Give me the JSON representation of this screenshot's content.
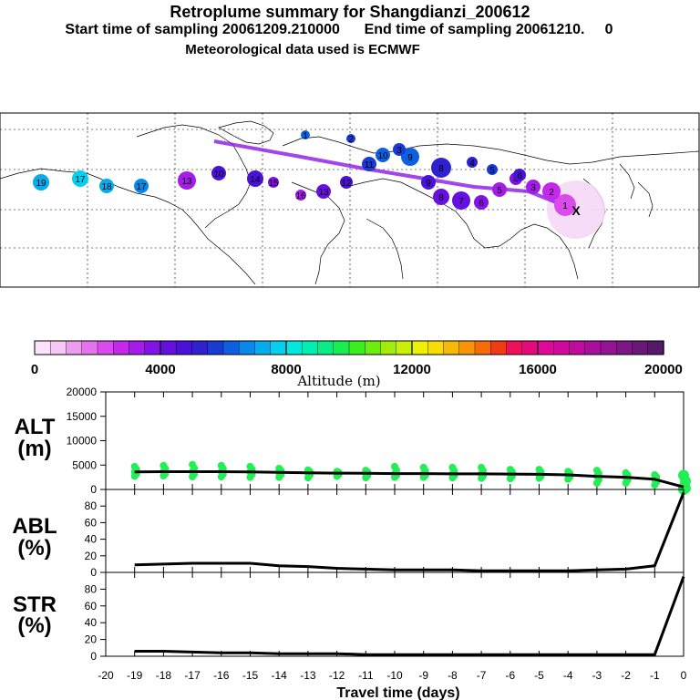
{
  "header": {
    "title": "Retroplume summary for Shangdianzi_200612",
    "sampling_line": "Start time of sampling 20061209.210000      End time of sampling 20061210.     0",
    "met_line": "Meteorological data used is ECMWF"
  },
  "colorbar": {
    "tick_labels": [
      "0",
      "4000",
      "8000",
      "12000",
      "16000",
      "20000"
    ],
    "axis_label": "Altitude (m)",
    "colors": [
      "#fbe3fb",
      "#f5c8f5",
      "#ee9cf0",
      "#e673ee",
      "#d94bea",
      "#c428ea",
      "#a41ce8",
      "#8212e6",
      "#6610e0",
      "#4a12d6",
      "#2f20d0",
      "#1a3ad6",
      "#0f60e0",
      "#0888e8",
      "#06acee",
      "#04cfee",
      "#04e8dc",
      "#04eeb4",
      "#08ee86",
      "#18ee50",
      "#3aee20",
      "#6eee10",
      "#a0ee08",
      "#caf008",
      "#eef008",
      "#f8dc08",
      "#f8b808",
      "#f89408",
      "#f86c08",
      "#f03c10",
      "#f0105a",
      "#e8087e",
      "#e00896",
      "#d00a9c",
      "#c00c9c",
      "#a8109c",
      "#941494",
      "#7e1688",
      "#6a1878",
      "#561868"
    ]
  },
  "map": {
    "label_numbers": [
      "1",
      "2",
      "3",
      "4",
      "5",
      "6",
      "7",
      "8",
      "9",
      "10",
      "11",
      "12",
      "13",
      "14",
      "15",
      "16",
      "17",
      "18",
      "19"
    ],
    "source_marker": "X"
  },
  "chart_data": [
    {
      "type": "line",
      "panel": "altitude",
      "ylabel": "ALT\n(m)",
      "ylabel_lines": [
        "ALT",
        "(m)"
      ],
      "ylim": [
        0,
        20000
      ],
      "y_ticks": [
        "0",
        "5000",
        "10000",
        "15000",
        "20000"
      ],
      "xlim": [
        -20,
        0
      ],
      "x": [
        -19,
        -18,
        -17,
        -16,
        -15,
        -14,
        -13,
        -12,
        -11,
        -10,
        -9,
        -8,
        -7,
        -6,
        -5,
        -4,
        -3,
        -2,
        -1,
        0
      ],
      "series": [
        {
          "name": "mean altitude",
          "values": [
            3600,
            3650,
            3650,
            3650,
            3600,
            3500,
            3400,
            3350,
            3300,
            3250,
            3250,
            3200,
            3200,
            3150,
            3100,
            3000,
            2700,
            2500,
            2100,
            500
          ]
        },
        {
          "name": "upper spread",
          "values": [
            4700,
            4900,
            5100,
            4900,
            4700,
            4300,
            4000,
            3700,
            3900,
            4700,
            4500,
            4500,
            4500,
            4100,
            4100,
            3700,
            3900,
            3400,
            3000,
            2900
          ]
        },
        {
          "name": "lower spread",
          "values": [
            2700,
            2800,
            2600,
            2600,
            2500,
            2500,
            2400,
            2700,
            2400,
            2500,
            2500,
            2400,
            2300,
            2200,
            2300,
            2100,
            1300,
            1300,
            900,
            0
          ]
        }
      ]
    },
    {
      "type": "line",
      "panel": "abl",
      "ylabel": "ABL\n(%)",
      "ylabel_lines": [
        "ABL",
        "(%)"
      ],
      "ylim": [
        0,
        100
      ],
      "y_ticks": [
        "0",
        "20",
        "40",
        "60",
        "80"
      ],
      "xlim": [
        -20,
        0
      ],
      "x": [
        -19,
        -18,
        -17,
        -16,
        -15,
        -14,
        -13,
        -12,
        -11,
        -10,
        -9,
        -8,
        -7,
        -6,
        -5,
        -4,
        -3,
        -2,
        -1,
        0
      ],
      "series": [
        {
          "name": "fraction in ABL",
          "values": [
            9,
            10,
            11,
            11,
            11,
            8,
            7,
            5,
            4,
            3,
            3,
            3,
            2,
            2,
            2,
            2,
            3,
            4,
            8,
            96
          ]
        }
      ]
    },
    {
      "type": "line",
      "panel": "str",
      "ylabel": "STR\n(%)",
      "ylabel_lines": [
        "STR",
        "(%)"
      ],
      "ylim": [
        0,
        100
      ],
      "y_ticks": [
        "0",
        "20",
        "40",
        "60",
        "80"
      ],
      "xlim": [
        -20,
        0
      ],
      "x": [
        -19,
        -18,
        -17,
        -16,
        -15,
        -14,
        -13,
        -12,
        -11,
        -10,
        -9,
        -8,
        -7,
        -6,
        -5,
        -4,
        -3,
        -2,
        -1,
        0
      ],
      "series": [
        {
          "name": "fraction in stratosphere",
          "values": [
            6,
            6,
            5,
            4,
            4,
            3,
            3,
            3,
            2,
            2,
            2,
            2,
            2,
            2,
            2,
            2,
            2,
            2,
            2,
            95
          ]
        }
      ]
    }
  ],
  "x_axis": {
    "tick_labels": [
      "-20",
      "-19",
      "-18",
      "-17",
      "-16",
      "-15",
      "-14",
      "-13",
      "-12",
      "-11",
      "-10",
      "-9",
      "-8",
      "-7",
      "-6",
      "-5",
      "-4",
      "-3",
      "-2",
      "-1",
      "0"
    ],
    "xlabel": "Travel time (days)"
  },
  "colors": {
    "line": "#000000",
    "scatter": "#22ee55"
  }
}
